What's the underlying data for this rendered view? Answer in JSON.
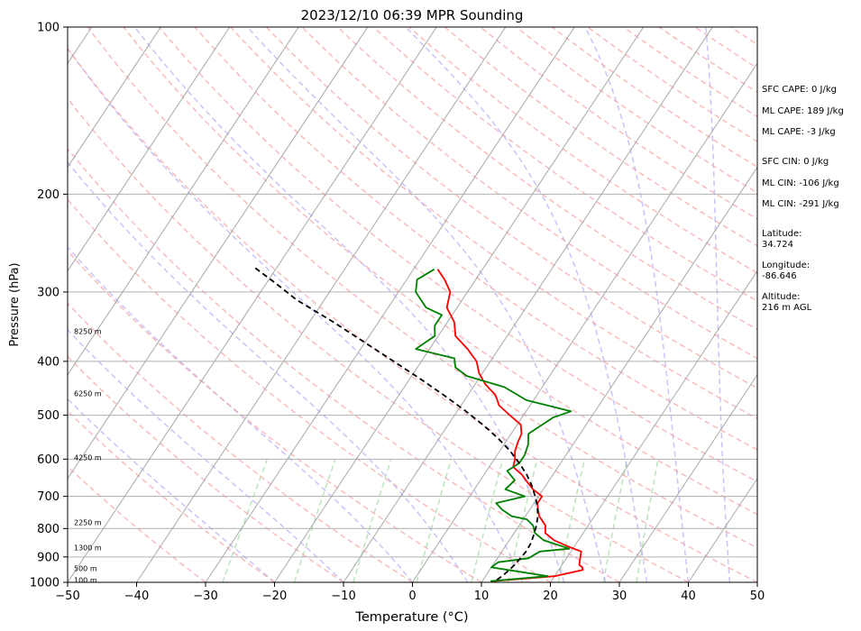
{
  "chart_data": {
    "type": "line",
    "title": "2023/12/10 06:39 MPR Sounding",
    "xlabel": "Temperature (°C)",
    "ylabel": "Pressure (hPa)",
    "xlim": [
      -50,
      50
    ],
    "ylim": [
      1000,
      100
    ],
    "y_scale": "log",
    "grid": true,
    "skew_per_decade": 53.5,
    "x_ticks": [
      -50,
      -40,
      -30,
      -20,
      -10,
      0,
      10,
      20,
      30,
      40,
      50
    ],
    "y_ticks": [
      100,
      200,
      300,
      400,
      500,
      600,
      700,
      800,
      900,
      1000
    ],
    "height_labels": [
      {
        "pressure": 353,
        "label": "8250 m"
      },
      {
        "pressure": 457,
        "label": "6250 m"
      },
      {
        "pressure": 596,
        "label": "4250 m"
      },
      {
        "pressure": 780,
        "label": "2250 m"
      },
      {
        "pressure": 866,
        "label": "1300 m"
      },
      {
        "pressure": 944,
        "label": "500 m"
      },
      {
        "pressure": 990,
        "label": "100 m"
      }
    ],
    "annotations": [
      "SFC CAPE: 0 J/kg",
      "ML CAPE: 189 J/kg",
      "ML CAPE: -3 J/kg",
      "SFC CIN: 0 J/kg",
      "ML CIN: -106 J/kg",
      "ML CIN: -291 J/kg",
      "Latitude:",
      "34.724",
      "Longitude:",
      "-86.646",
      "Altitude:",
      "216 m AGL"
    ],
    "series": [
      {
        "color": "#ff0000",
        "pressure": [
          995,
          975,
          950,
          940,
          930,
          920,
          905,
          880,
          865,
          840,
          815,
          790,
          760,
          740,
          720,
          700,
          680,
          660,
          640,
          620,
          600,
          580,
          560,
          540,
          520,
          500,
          480,
          460,
          440,
          420,
          400,
          380,
          360,
          340,
          320,
          300,
          285,
          273
        ],
        "temperature": [
          11.5,
          20,
          23.5,
          23.2,
          22.5,
          22.3,
          22,
          21.5,
          19.5,
          16.5,
          14.5,
          13.8,
          12,
          11.2,
          10.5,
          10.5,
          8.5,
          7,
          5.5,
          3.5,
          3,
          2.2,
          1.8,
          1.5,
          0.5,
          -2,
          -4.5,
          -6,
          -8.5,
          -10.5,
          -12,
          -14.5,
          -17.5,
          -19,
          -21.5,
          -22.5,
          -24.5,
          -26.5
        ]
      },
      {
        "color": "#008000",
        "pressure": [
          995,
          975,
          955,
          940,
          920,
          905,
          880,
          870,
          840,
          815,
          790,
          770,
          760,
          740,
          720,
          700,
          680,
          655,
          630,
          610,
          590,
          565,
          540,
          505,
          492,
          470,
          445,
          425,
          410,
          395,
          380,
          360,
          345,
          330,
          320,
          300,
          285,
          273
        ],
        "temperature": [
          11.2,
          19,
          14,
          10,
          10.5,
          14.5,
          15.5,
          19.5,
          15,
          13,
          12,
          10.5,
          8,
          6,
          4.5,
          8,
          4.5,
          5,
          3,
          4,
          4,
          3.5,
          2.5,
          4.5,
          6.5,
          -1,
          -5.5,
          -12,
          -14.5,
          -15.5,
          -22,
          -20.5,
          -21.5,
          -21.5,
          -24.5,
          -27.5,
          -28.5,
          -27
        ]
      },
      {
        "color": "#000000",
        "dashed": true,
        "pressure": [
          990,
          970,
          940,
          910,
          880,
          850,
          820,
          790,
          760,
          730,
          700,
          670,
          640,
          610,
          580,
          550,
          520,
          490,
          460,
          430,
          400,
          370,
          340,
          310,
          290,
          270
        ],
        "temperature": [
          12,
          12.5,
          13,
          13.3,
          13.5,
          13.4,
          13,
          12.5,
          11.8,
          10.8,
          9.5,
          8,
          6.2,
          4,
          1.5,
          -1.5,
          -5,
          -9,
          -13.5,
          -18.5,
          -24,
          -30,
          -36.5,
          -44,
          -48.5,
          -53.5
        ]
      }
    ]
  }
}
